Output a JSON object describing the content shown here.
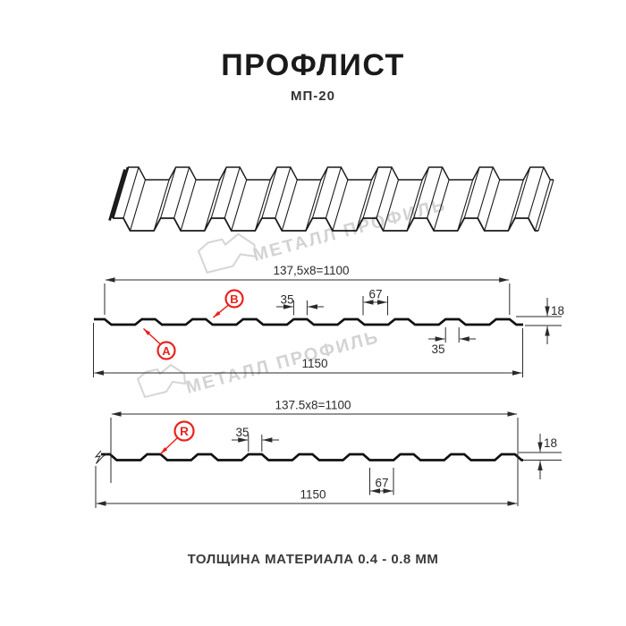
{
  "header": {
    "title": "ПРОФЛИСТ",
    "subtitle": "МП-20"
  },
  "watermark": {
    "text": "МЕТАЛЛ ПРОФИЛЬ",
    "color": "#d3d3d3"
  },
  "colors": {
    "accent_red": "#e8231f",
    "drawing_line": "#1a1a1a",
    "dimension_line": "#2a2a2a"
  },
  "section1": {
    "labels": {
      "a": "A",
      "b": "B"
    },
    "dims": {
      "pitch": "137,5x8=1100",
      "rib_top_width": "35",
      "valley_width": "67",
      "rib_bottom_width": "35",
      "height": "18",
      "total_width": "1150"
    }
  },
  "section2": {
    "labels": {
      "r": "R"
    },
    "dims": {
      "pitch": "137.5x8=1100",
      "rib_top_width": "35",
      "valley_width": "67",
      "height": "18",
      "total_width": "1150"
    }
  },
  "footer": {
    "text": "ТОЛЩИНА МАТЕРИАЛА 0.4 - 0.8 ММ"
  }
}
